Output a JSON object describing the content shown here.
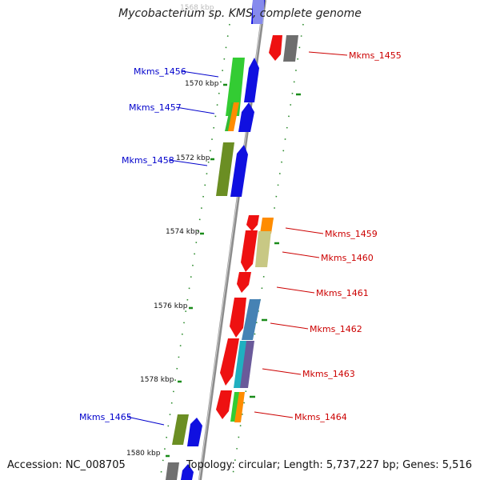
{
  "title": "Mycobacterium sp. KMS, complete genome",
  "accession": "Accession: NC_008705",
  "topology": "Topology: circular; Length: 5,737,227 bp; Genes: 5,516",
  "colors": {
    "forward_label": "#0000cc",
    "reverse_label": "#cc0000",
    "tick": "#1a8c1a",
    "backbone": "#888888"
  },
  "ticks": [
    {
      "label": "1568 kbp"
    },
    {
      "label": "1570 kbp"
    },
    {
      "label": "1572 kbp"
    },
    {
      "label": "1574 kbp"
    },
    {
      "label": "1576 kbp"
    },
    {
      "label": "1578 kbp"
    },
    {
      "label": "1580 kbp"
    }
  ],
  "genes": [
    {
      "id": "Mkms_1455",
      "strand": "reverse"
    },
    {
      "id": "Mkms_1456",
      "strand": "forward"
    },
    {
      "id": "Mkms_1457",
      "strand": "forward"
    },
    {
      "id": "Mkms_1458",
      "strand": "forward"
    },
    {
      "id": "Mkms_1459",
      "strand": "reverse"
    },
    {
      "id": "Mkms_1460",
      "strand": "reverse"
    },
    {
      "id": "Mkms_1461",
      "strand": "reverse"
    },
    {
      "id": "Mkms_1462",
      "strand": "reverse"
    },
    {
      "id": "Mkms_1463",
      "strand": "reverse"
    },
    {
      "id": "Mkms_1464",
      "strand": "reverse"
    },
    {
      "id": "Mkms_1465",
      "strand": "forward"
    }
  ]
}
